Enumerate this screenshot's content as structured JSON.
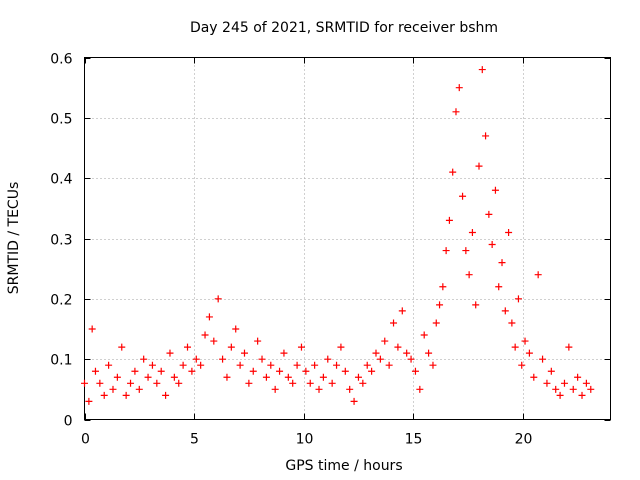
{
  "chart_data": {
    "type": "scatter",
    "title": "Day 245 of 2021, SRMTID for receiver bshm",
    "xlabel": "GPS time / hours",
    "ylabel": "SRMTID / TECUs",
    "xlim": [
      0,
      24
    ],
    "ylim": [
      0,
      0.6
    ],
    "xticks": [
      0,
      5,
      10,
      15,
      20
    ],
    "xtick_labels": [
      "0",
      "5",
      "10",
      "15",
      "20"
    ],
    "yticks": [
      0,
      0.1,
      0.2,
      0.3,
      0.4,
      0.5,
      0.6
    ],
    "ytick_labels": [
      "0",
      "0.1",
      "0.2",
      "0.3",
      "0.4",
      "0.5",
      "0.6"
    ],
    "grid": true,
    "marker": "+",
    "color": "#ff0000",
    "series": [
      {
        "name": "SRMTID",
        "x": [
          0.0,
          0.2,
          0.35,
          0.5,
          0.7,
          0.9,
          1.1,
          1.3,
          1.5,
          1.7,
          1.9,
          2.1,
          2.3,
          2.5,
          2.7,
          2.9,
          3.1,
          3.3,
          3.5,
          3.7,
          3.9,
          4.1,
          4.3,
          4.5,
          4.7,
          4.9,
          5.1,
          5.3,
          5.5,
          5.7,
          5.9,
          6.1,
          6.3,
          6.5,
          6.7,
          6.9,
          7.1,
          7.3,
          7.5,
          7.7,
          7.9,
          8.1,
          8.3,
          8.5,
          8.7,
          8.9,
          9.1,
          9.3,
          9.5,
          9.7,
          9.9,
          10.1,
          10.3,
          10.5,
          10.7,
          10.9,
          11.1,
          11.3,
          11.5,
          11.7,
          11.9,
          12.1,
          12.3,
          12.5,
          12.7,
          12.9,
          13.1,
          13.3,
          13.5,
          13.7,
          13.9,
          14.1,
          14.3,
          14.5,
          14.7,
          14.9,
          15.1,
          15.3,
          15.5,
          15.7,
          15.9,
          16.05,
          16.2,
          16.35,
          16.5,
          16.65,
          16.8,
          16.95,
          17.1,
          17.25,
          17.4,
          17.55,
          17.7,
          17.85,
          18.0,
          18.15,
          18.3,
          18.45,
          18.6,
          18.75,
          18.9,
          19.05,
          19.2,
          19.35,
          19.5,
          19.65,
          19.8,
          19.95,
          20.1,
          20.3,
          20.5,
          20.7,
          20.9,
          21.1,
          21.3,
          21.5,
          21.7,
          21.9,
          22.1,
          22.3,
          22.5,
          22.7,
          22.9,
          23.1
        ],
        "y": [
          0.06,
          0.03,
          0.15,
          0.08,
          0.06,
          0.04,
          0.09,
          0.05,
          0.07,
          0.12,
          0.04,
          0.06,
          0.08,
          0.05,
          0.1,
          0.07,
          0.09,
          0.06,
          0.08,
          0.04,
          0.11,
          0.07,
          0.06,
          0.09,
          0.12,
          0.08,
          0.1,
          0.09,
          0.14,
          0.17,
          0.13,
          0.2,
          0.1,
          0.07,
          0.12,
          0.15,
          0.09,
          0.11,
          0.06,
          0.08,
          0.13,
          0.1,
          0.07,
          0.09,
          0.05,
          0.08,
          0.11,
          0.07,
          0.06,
          0.09,
          0.12,
          0.08,
          0.06,
          0.09,
          0.05,
          0.07,
          0.1,
          0.06,
          0.09,
          0.12,
          0.08,
          0.05,
          0.03,
          0.07,
          0.06,
          0.09,
          0.08,
          0.11,
          0.1,
          0.13,
          0.09,
          0.16,
          0.12,
          0.18,
          0.11,
          0.1,
          0.08,
          0.05,
          0.14,
          0.11,
          0.09,
          0.16,
          0.19,
          0.22,
          0.28,
          0.33,
          0.41,
          0.51,
          0.55,
          0.37,
          0.28,
          0.24,
          0.31,
          0.19,
          0.42,
          0.58,
          0.47,
          0.34,
          0.29,
          0.38,
          0.22,
          0.26,
          0.18,
          0.31,
          0.16,
          0.12,
          0.2,
          0.09,
          0.13,
          0.11,
          0.07,
          0.24,
          0.1,
          0.06,
          0.08,
          0.05,
          0.04,
          0.06,
          0.12,
          0.05,
          0.07,
          0.04,
          0.06,
          0.05
        ]
      }
    ]
  }
}
